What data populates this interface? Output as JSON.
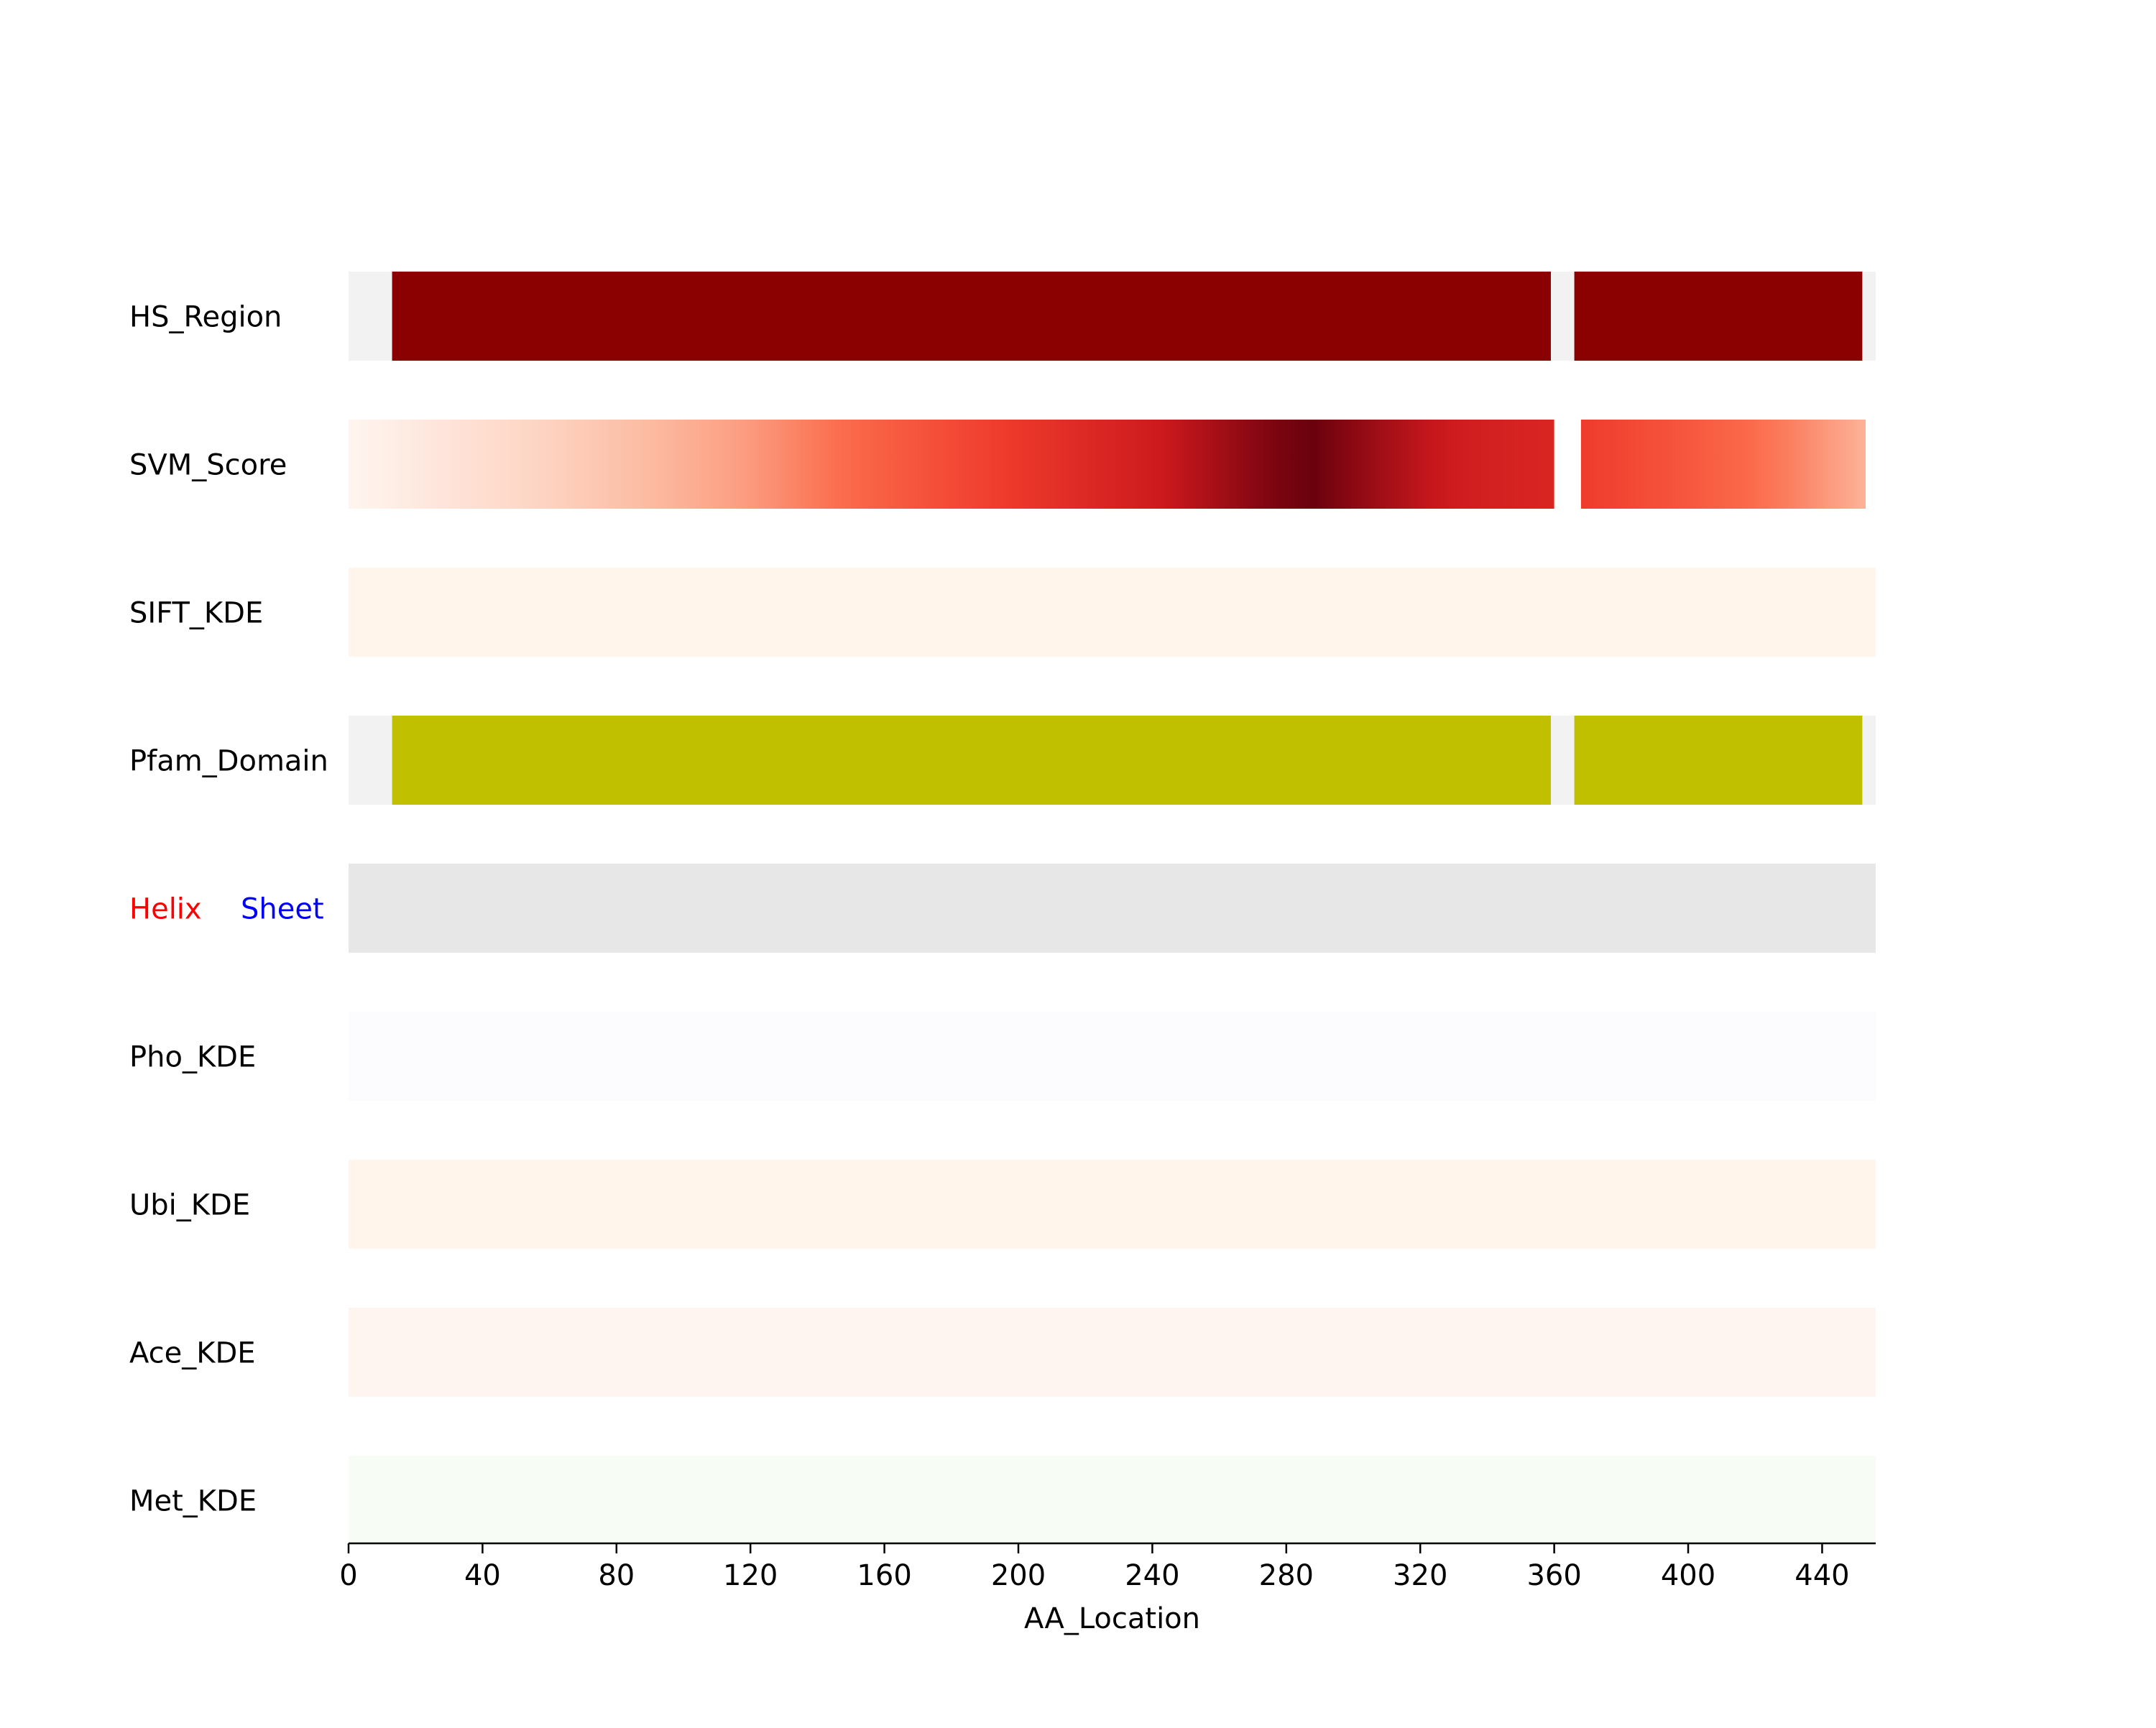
{
  "chart_data": {
    "type": "heatmap",
    "xlabel": "AA_Location",
    "xlim": [
      0,
      456
    ],
    "xticks": [
      0,
      40,
      80,
      120,
      160,
      200,
      240,
      280,
      320,
      360,
      400,
      440
    ],
    "grid": false,
    "legend": "none",
    "colors": {
      "background": "#ffffff",
      "gap": "#f2f2f2",
      "hs_region": "#8b0000",
      "pfam_domain": "#c0c000",
      "secondary_structure_track": "#e7e7e7",
      "helix_label": "#ff0000",
      "sheet_label": "#0000ff",
      "sift_kde": "#fff5eb",
      "pho_kde": "#fcfbfd",
      "ubi_kde": "#fff5eb",
      "ace_kde": "#fff5f0",
      "met_kde": "#f7fcf5",
      "svm_colormap": [
        "#fff5f0",
        "#fcbba1",
        "#fb6a4a",
        "#ef3b2c",
        "#cb181d",
        "#67000d"
      ]
    },
    "tracks": [
      {
        "label": "HS_Region",
        "kind": "segments",
        "color_key": "hs_region",
        "gap_color_key": "gap",
        "segments": [
          [
            13,
            359
          ],
          [
            366,
            452
          ]
        ]
      },
      {
        "label": "SVM_Score",
        "kind": "gradient",
        "colormap_key": "svm_colormap",
        "gap_color_key": "background",
        "segments": [
          [
            0,
            360
          ],
          [
            368,
            453
          ]
        ],
        "profile": [
          {
            "x": 0,
            "v": 0.0
          },
          {
            "x": 60,
            "v": 0.12
          },
          {
            "x": 120,
            "v": 0.28
          },
          {
            "x": 160,
            "v": 0.45
          },
          {
            "x": 200,
            "v": 0.62
          },
          {
            "x": 240,
            "v": 0.78
          },
          {
            "x": 270,
            "v": 0.93
          },
          {
            "x": 287,
            "v": 1.0
          },
          {
            "x": 305,
            "v": 0.9
          },
          {
            "x": 330,
            "v": 0.78
          },
          {
            "x": 360,
            "v": 0.72
          },
          {
            "x": 368,
            "v": 0.6
          },
          {
            "x": 400,
            "v": 0.48
          },
          {
            "x": 430,
            "v": 0.35
          },
          {
            "x": 453,
            "v": 0.22
          }
        ]
      },
      {
        "label": "SIFT_KDE",
        "kind": "solid",
        "color_key": "sift_kde"
      },
      {
        "label": "Pfam_Domain",
        "kind": "segments",
        "color_key": "pfam_domain",
        "gap_color_key": "gap",
        "segments": [
          [
            13,
            359
          ],
          [
            366,
            452
          ]
        ]
      },
      {
        "label": "Helix",
        "label2": "Sheet",
        "kind": "solid",
        "color_key": "secondary_structure_track",
        "label_color_key": "helix_label",
        "label2_color_key": "sheet_label"
      },
      {
        "label": "Pho_KDE",
        "kind": "solid",
        "color_key": "pho_kde"
      },
      {
        "label": "Ubi_KDE",
        "kind": "solid",
        "color_key": "ubi_kde"
      },
      {
        "label": "Ace_KDE",
        "kind": "solid",
        "color_key": "ace_kde"
      },
      {
        "label": "Met_KDE",
        "kind": "solid",
        "color_key": "met_kde"
      }
    ]
  }
}
